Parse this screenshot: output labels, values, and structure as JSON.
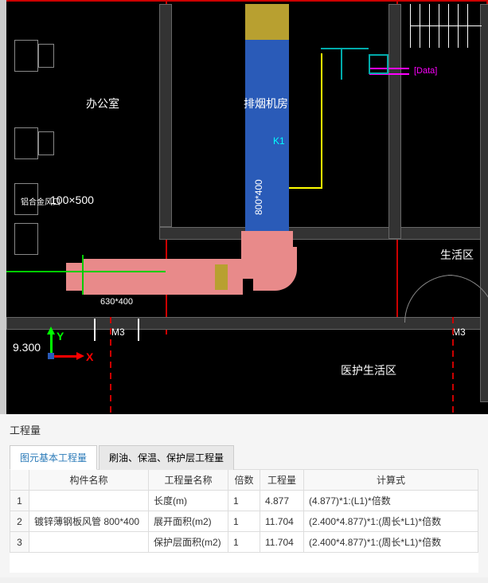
{
  "viewport": {
    "rooms": {
      "office": "办公室",
      "fan_room": "排烟机房",
      "living": "生活区",
      "medical": "医护生活区"
    },
    "duct_labels": {
      "main": "800*400",
      "branch": "630*400",
      "inlet": "100×500",
      "inlet_prefix": "铝合金风口",
      "k1": "K1"
    },
    "date_tag": "[Data]",
    "doors": {
      "m3_left": "M3",
      "m3_right": "M3"
    },
    "axis": {
      "x": "X",
      "y": "Y",
      "coord": "9.300"
    }
  },
  "panel": {
    "title": "工程量",
    "tabs": {
      "basic": "图元基本工程量",
      "other": "刷油、保温、保护层工程量"
    },
    "table": {
      "headers": {
        "name": "构件名称",
        "qty_name": "工程量名称",
        "mult": "倍数",
        "qty": "工程量",
        "formula": "计算式"
      },
      "rows": [
        {
          "n": "1",
          "name": "",
          "qname": "长度(m)",
          "mult": "1",
          "qty": "4.877",
          "formula": "(4.877)*1:(L1)*倍数"
        },
        {
          "n": "2",
          "name": "镀锌薄钢板风管 800*400",
          "qname": "展开面积(m2)",
          "mult": "1",
          "qty": "11.704",
          "formula": "(2.400*4.877)*1:(周长*L1)*倍数"
        },
        {
          "n": "3",
          "name": "",
          "qname": "保护层面积(m2)",
          "mult": "1",
          "qty": "11.704",
          "formula": "(2.400*4.877)*1:(周长*L1)*倍数"
        }
      ]
    }
  }
}
